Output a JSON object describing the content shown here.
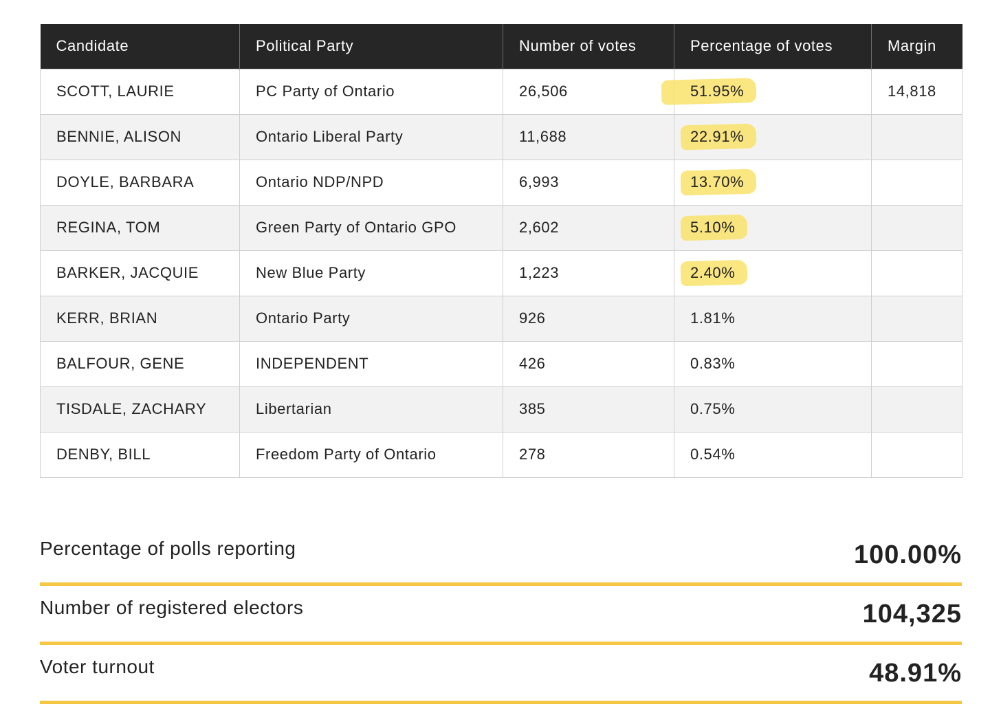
{
  "table": {
    "headers": [
      "Candidate",
      "Political Party",
      "Number of votes",
      "Percentage of votes",
      "Margin"
    ],
    "rows": [
      {
        "candidate": "SCOTT, LAURIE",
        "party": "PC Party of Ontario",
        "votes": "26,506",
        "percentage": "51.95%",
        "margin": "14,818"
      },
      {
        "candidate": "BENNIE, ALISON",
        "party": "Ontario Liberal Party",
        "votes": "11,688",
        "percentage": "22.91%",
        "margin": ""
      },
      {
        "candidate": "DOYLE, BARBARA",
        "party": "Ontario NDP/NPD",
        "votes": "6,993",
        "percentage": "13.70%",
        "margin": ""
      },
      {
        "candidate": "REGINA, TOM",
        "party": "Green Party of Ontario GPO",
        "votes": "2,602",
        "percentage": "5.10%",
        "margin": ""
      },
      {
        "candidate": "BARKER, JACQUIE",
        "party": "New Blue Party",
        "votes": "1,223",
        "percentage": "2.40%",
        "margin": ""
      },
      {
        "candidate": "KERR, BRIAN",
        "party": "Ontario Party",
        "votes": "926",
        "percentage": "1.81%",
        "margin": ""
      },
      {
        "candidate": "BALFOUR, GENE",
        "party": "INDEPENDENT",
        "votes": "426",
        "percentage": "0.83%",
        "margin": ""
      },
      {
        "candidate": "TISDALE, ZACHARY",
        "party": "Libertarian",
        "votes": "385",
        "percentage": "0.75%",
        "margin": ""
      },
      {
        "candidate": "DENBY, BILL",
        "party": "Freedom Party of Ontario",
        "votes": "278",
        "percentage": "0.54%",
        "margin": ""
      }
    ]
  },
  "summary": {
    "polls_reporting": {
      "label": "Percentage of polls reporting",
      "value": "100.00%"
    },
    "registered_electors": {
      "label": "Number of registered electors",
      "value": "104,325"
    },
    "voter_turnout": {
      "label": "Voter turnout",
      "value": "48.91%"
    }
  },
  "colors": {
    "header_background": "#262626",
    "highlight": "#fae36b",
    "summary_rule": "#f6c744"
  }
}
